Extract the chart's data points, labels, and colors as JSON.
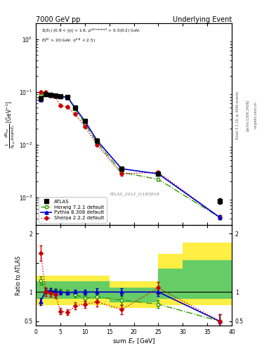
{
  "title_left": "7000 GeV pp",
  "title_right": "Underlying Event",
  "annotation": "ATLAS_2012_I1183818",
  "ylabel_main": "1/N_{evt} dN_{evt}/dsum E_T [GeV^{-1}]",
  "ylabel_ratio": "Ratio to ATLAS",
  "xlabel": "sum E_T [GeV]",
  "atlas_x": [
    1.0,
    2.0,
    3.0,
    4.0,
    5.0,
    6.5,
    8.0,
    10.0,
    12.5,
    17.5,
    25.0,
    37.5
  ],
  "atlas_y": [
    0.075,
    0.09,
    0.088,
    0.085,
    0.082,
    0.08,
    0.05,
    0.028,
    0.012,
    0.0035,
    0.0028,
    0.00085
  ],
  "atlas_yerr_lo": [
    0.005,
    0.003,
    0.003,
    0.003,
    0.003,
    0.003,
    0.003,
    0.002,
    0.001,
    0.0003,
    0.0002,
    0.0001
  ],
  "atlas_yerr_hi": [
    0.005,
    0.003,
    0.003,
    0.003,
    0.003,
    0.003,
    0.003,
    0.002,
    0.001,
    0.0003,
    0.0002,
    0.0001
  ],
  "herwig_x": [
    1.0,
    2.0,
    3.0,
    4.0,
    5.0,
    6.5,
    8.0,
    10.0,
    12.5,
    17.5,
    25.0,
    37.5
  ],
  "herwig_y": [
    0.09,
    0.092,
    0.09,
    0.087,
    0.083,
    0.08,
    0.048,
    0.025,
    0.011,
    0.003,
    0.0022,
    0.00042
  ],
  "herwig_yerr": [
    0.004,
    0.003,
    0.003,
    0.003,
    0.002,
    0.002,
    0.002,
    0.001,
    0.0007,
    0.0002,
    0.00015,
    4e-05
  ],
  "pythia_x": [
    1.0,
    2.0,
    3.0,
    4.0,
    5.0,
    6.5,
    8.0,
    10.0,
    12.5,
    17.5,
    25.0,
    37.5
  ],
  "pythia_y": [
    0.072,
    0.092,
    0.09,
    0.086,
    0.082,
    0.079,
    0.05,
    0.028,
    0.012,
    0.0035,
    0.0028,
    0.00042
  ],
  "pythia_yerr": [
    0.004,
    0.003,
    0.003,
    0.002,
    0.002,
    0.002,
    0.002,
    0.001,
    0.0006,
    0.0002,
    0.00015,
    4e-05
  ],
  "sherpa_x": [
    1.0,
    2.0,
    3.0,
    4.0,
    5.0,
    6.5,
    8.0,
    10.0,
    12.5,
    17.5,
    25.0,
    37.5
  ],
  "sherpa_y": [
    0.1,
    0.098,
    0.086,
    0.082,
    0.055,
    0.052,
    0.038,
    0.022,
    0.01,
    0.0028,
    0.003,
    0.00042
  ],
  "sherpa_yerr": [
    0.007,
    0.005,
    0.004,
    0.004,
    0.003,
    0.003,
    0.002,
    0.001,
    0.0007,
    0.0002,
    0.00018,
    4e-05
  ],
  "herwig_ratio": [
    1.2,
    1.02,
    1.02,
    1.02,
    1.01,
    1.0,
    0.96,
    0.89,
    0.92,
    0.86,
    0.79,
    0.5
  ],
  "herwig_ratio_err": [
    0.07,
    0.05,
    0.05,
    0.04,
    0.04,
    0.04,
    0.05,
    0.05,
    0.07,
    0.07,
    0.07,
    0.12
  ],
  "pythia_ratio": [
    0.84,
    1.02,
    1.02,
    1.01,
    1.0,
    0.99,
    1.0,
    1.0,
    1.0,
    1.0,
    1.0,
    0.5
  ],
  "pythia_ratio_err": [
    0.06,
    0.04,
    0.04,
    0.04,
    0.04,
    0.03,
    0.04,
    0.04,
    0.06,
    0.06,
    0.07,
    0.12
  ],
  "sherpa_ratio": [
    1.67,
    1.0,
    0.98,
    0.96,
    0.67,
    0.65,
    0.76,
    0.79,
    0.83,
    0.7,
    1.07,
    0.5
  ],
  "sherpa_ratio_err": [
    0.13,
    0.07,
    0.06,
    0.06,
    0.05,
    0.05,
    0.06,
    0.06,
    0.08,
    0.08,
    0.1,
    0.12
  ],
  "green_band_edges": [
    0,
    2,
    5,
    10,
    15,
    20,
    25,
    30,
    40
  ],
  "green_band_lo": [
    0.88,
    0.88,
    0.88,
    0.88,
    0.82,
    0.82,
    0.88,
    0.88,
    0.88
  ],
  "green_band_hi": [
    1.18,
    1.18,
    1.18,
    1.18,
    1.08,
    1.08,
    1.4,
    1.55,
    1.55
  ],
  "yellow_band_edges": [
    0,
    2,
    5,
    10,
    15,
    20,
    25,
    30,
    40
  ],
  "yellow_band_lo": [
    0.78,
    0.78,
    0.78,
    0.78,
    0.72,
    0.72,
    0.78,
    0.78,
    0.78
  ],
  "yellow_band_hi": [
    1.28,
    1.28,
    1.28,
    1.28,
    1.18,
    1.18,
    1.65,
    1.85,
    1.85
  ],
  "atlas_color": "#000000",
  "herwig_color": "#339900",
  "pythia_color": "#0000cc",
  "sherpa_color": "#cc0000",
  "green_band_color": "#66cc66",
  "yellow_band_color": "#ffee44",
  "ylim_main": [
    0.0003,
    2.0
  ],
  "xlim": [
    0,
    40
  ]
}
